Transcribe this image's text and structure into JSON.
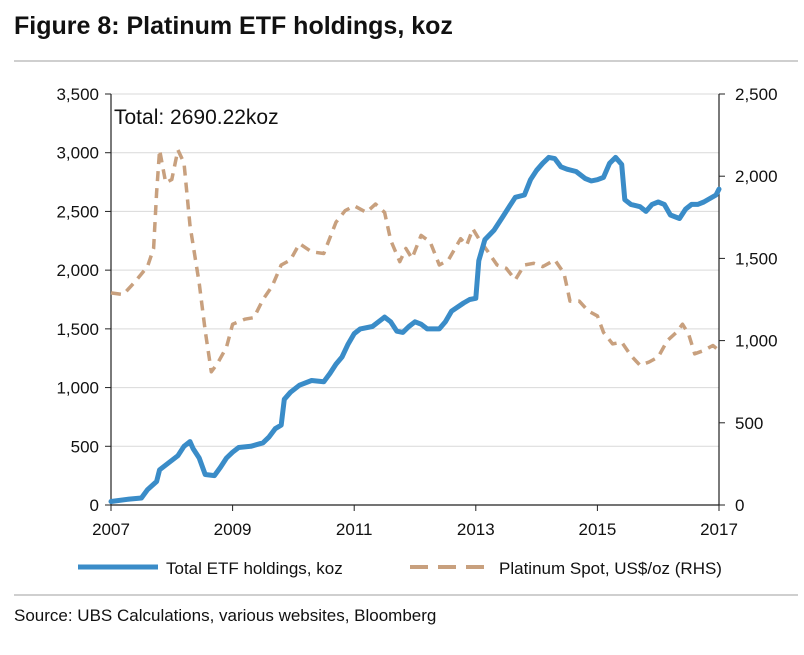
{
  "title": "Figure 8: Platinum ETF holdings, koz",
  "source": "Source:  UBS Calculations, various websites, Bloomberg",
  "chart_data": {
    "type": "line",
    "annotation": "Total: 2690.22koz",
    "x_ticks": [
      "2007",
      "2009",
      "2011",
      "2013",
      "2015",
      "2017"
    ],
    "xlim": [
      2007,
      2017
    ],
    "y_left_ticks": [
      "0",
      "500",
      "1,000",
      "1,500",
      "2,000",
      "2,500",
      "3,000",
      "3,500"
    ],
    "ylim_left": [
      0,
      3500
    ],
    "y_right_ticks": [
      "0",
      "500",
      "1,000",
      "1,500",
      "2,000",
      "2,500"
    ],
    "ylim_right": [
      0,
      2500
    ],
    "grid": true,
    "legend_position": "bottom",
    "series": [
      {
        "name": "Total ETF holdings, koz",
        "axis": "left",
        "color": "#3a8cc8",
        "style": "solid",
        "points": [
          [
            2007.0,
            30
          ],
          [
            2007.3,
            50
          ],
          [
            2007.5,
            60
          ],
          [
            2007.6,
            130
          ],
          [
            2007.75,
            200
          ],
          [
            2007.8,
            300
          ],
          [
            2007.95,
            360
          ],
          [
            2008.1,
            420
          ],
          [
            2008.2,
            500
          ],
          [
            2008.3,
            540
          ],
          [
            2008.35,
            480
          ],
          [
            2008.45,
            400
          ],
          [
            2008.55,
            260
          ],
          [
            2008.7,
            250
          ],
          [
            2008.8,
            320
          ],
          [
            2008.9,
            400
          ],
          [
            2009.0,
            450
          ],
          [
            2009.1,
            490
          ],
          [
            2009.3,
            500
          ],
          [
            2009.5,
            530
          ],
          [
            2009.6,
            580
          ],
          [
            2009.7,
            650
          ],
          [
            2009.8,
            680
          ],
          [
            2009.85,
            900
          ],
          [
            2009.95,
            960
          ],
          [
            2010.1,
            1020
          ],
          [
            2010.3,
            1060
          ],
          [
            2010.5,
            1050
          ],
          [
            2010.6,
            1120
          ],
          [
            2010.7,
            1200
          ],
          [
            2010.8,
            1260
          ],
          [
            2010.9,
            1370
          ],
          [
            2011.0,
            1460
          ],
          [
            2011.1,
            1500
          ],
          [
            2011.3,
            1520
          ],
          [
            2011.5,
            1600
          ],
          [
            2011.6,
            1560
          ],
          [
            2011.7,
            1480
          ],
          [
            2011.8,
            1470
          ],
          [
            2011.9,
            1520
          ],
          [
            2012.0,
            1560
          ],
          [
            2012.1,
            1540
          ],
          [
            2012.2,
            1500
          ],
          [
            2012.4,
            1500
          ],
          [
            2012.5,
            1560
          ],
          [
            2012.6,
            1650
          ],
          [
            2012.8,
            1720
          ],
          [
            2012.9,
            1750
          ],
          [
            2013.0,
            1760
          ],
          [
            2013.05,
            2080
          ],
          [
            2013.15,
            2260
          ],
          [
            2013.3,
            2340
          ],
          [
            2013.45,
            2460
          ],
          [
            2013.55,
            2540
          ],
          [
            2013.65,
            2620
          ],
          [
            2013.8,
            2640
          ],
          [
            2013.9,
            2770
          ],
          [
            2014.0,
            2850
          ],
          [
            2014.1,
            2910
          ],
          [
            2014.2,
            2960
          ],
          [
            2014.3,
            2950
          ],
          [
            2014.4,
            2880
          ],
          [
            2014.5,
            2860
          ],
          [
            2014.65,
            2840
          ],
          [
            2014.8,
            2780
          ],
          [
            2014.9,
            2760
          ],
          [
            2015.0,
            2770
          ],
          [
            2015.1,
            2790
          ],
          [
            2015.2,
            2910
          ],
          [
            2015.3,
            2960
          ],
          [
            2015.4,
            2900
          ],
          [
            2015.45,
            2600
          ],
          [
            2015.55,
            2560
          ],
          [
            2015.7,
            2540
          ],
          [
            2015.8,
            2500
          ],
          [
            2015.9,
            2560
          ],
          [
            2016.0,
            2580
          ],
          [
            2016.1,
            2560
          ],
          [
            2016.2,
            2470
          ],
          [
            2016.35,
            2440
          ],
          [
            2016.45,
            2520
          ],
          [
            2016.55,
            2560
          ],
          [
            2016.65,
            2560
          ],
          [
            2016.75,
            2580
          ],
          [
            2016.85,
            2610
          ],
          [
            2016.95,
            2640
          ],
          [
            2017.0,
            2690
          ]
        ]
      },
      {
        "name": "Platinum Spot, US$/oz (RHS)",
        "axis": "right",
        "color": "#c8a07e",
        "style": "dashed",
        "points": [
          [
            2007.0,
            1290
          ],
          [
            2007.2,
            1280
          ],
          [
            2007.4,
            1360
          ],
          [
            2007.6,
            1450
          ],
          [
            2007.7,
            1560
          ],
          [
            2007.75,
            1900
          ],
          [
            2007.8,
            2160
          ],
          [
            2007.9,
            1960
          ],
          [
            2008.0,
            1980
          ],
          [
            2008.1,
            2160
          ],
          [
            2008.2,
            2080
          ],
          [
            2008.3,
            1700
          ],
          [
            2008.45,
            1350
          ],
          [
            2008.55,
            1060
          ],
          [
            2008.65,
            810
          ],
          [
            2008.75,
            860
          ],
          [
            2008.9,
            960
          ],
          [
            2009.0,
            1100
          ],
          [
            2009.2,
            1130
          ],
          [
            2009.35,
            1140
          ],
          [
            2009.5,
            1250
          ],
          [
            2009.65,
            1330
          ],
          [
            2009.8,
            1460
          ],
          [
            2009.95,
            1490
          ],
          [
            2010.1,
            1590
          ],
          [
            2010.3,
            1540
          ],
          [
            2010.5,
            1530
          ],
          [
            2010.7,
            1720
          ],
          [
            2010.85,
            1790
          ],
          [
            2011.0,
            1820
          ],
          [
            2011.2,
            1780
          ],
          [
            2011.35,
            1830
          ],
          [
            2011.5,
            1780
          ],
          [
            2011.6,
            1610
          ],
          [
            2011.75,
            1480
          ],
          [
            2011.85,
            1560
          ],
          [
            2011.95,
            1500
          ],
          [
            2012.1,
            1640
          ],
          [
            2012.25,
            1600
          ],
          [
            2012.4,
            1460
          ],
          [
            2012.55,
            1490
          ],
          [
            2012.75,
            1620
          ],
          [
            2012.85,
            1580
          ],
          [
            2012.95,
            1680
          ],
          [
            2013.05,
            1620
          ],
          [
            2013.2,
            1540
          ],
          [
            2013.35,
            1460
          ],
          [
            2013.5,
            1440
          ],
          [
            2013.65,
            1370
          ],
          [
            2013.8,
            1460
          ],
          [
            2013.95,
            1470
          ],
          [
            2014.1,
            1450
          ],
          [
            2014.3,
            1490
          ],
          [
            2014.45,
            1410
          ],
          [
            2014.55,
            1240
          ],
          [
            2014.7,
            1240
          ],
          [
            2014.85,
            1180
          ],
          [
            2015.0,
            1150
          ],
          [
            2015.1,
            1050
          ],
          [
            2015.25,
            980
          ],
          [
            2015.4,
            990
          ],
          [
            2015.55,
            910
          ],
          [
            2015.7,
            850
          ],
          [
            2015.85,
            870
          ],
          [
            2016.0,
            900
          ],
          [
            2016.15,
            1000
          ],
          [
            2016.3,
            1050
          ],
          [
            2016.4,
            1100
          ],
          [
            2016.5,
            1040
          ],
          [
            2016.6,
            920
          ],
          [
            2016.75,
            940
          ],
          [
            2016.9,
            970
          ],
          [
            2017.0,
            940
          ]
        ]
      }
    ]
  }
}
